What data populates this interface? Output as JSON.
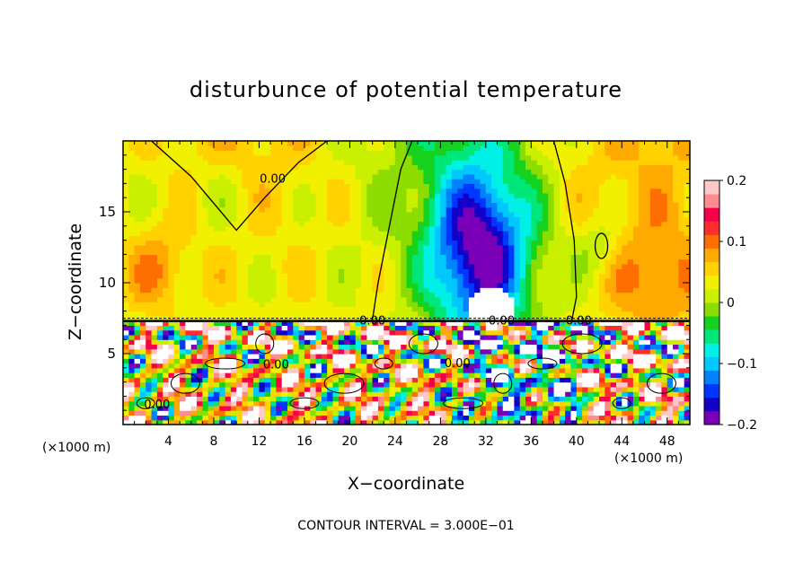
{
  "chart_data": {
    "type": "heatmap",
    "title": "disturbunce of potential temperature",
    "xlabel": "X−coordinate",
    "ylabel": "Z−coordinate",
    "x_unit_label": "(×1000 m)",
    "y_unit_label": "(×1000 m)",
    "footer": "CONTOUR INTERVAL = 3.000E−01",
    "xlim": [
      0,
      50
    ],
    "ylim": [
      0,
      20
    ],
    "x_ticks": [
      4,
      8,
      12,
      16,
      20,
      24,
      28,
      32,
      36,
      40,
      44,
      48
    ],
    "x_tick_labels": [
      "4",
      "8",
      "12",
      "16",
      "20",
      "24",
      "28",
      "32",
      "36",
      "40",
      "44",
      "48"
    ],
    "y_ticks": [
      5,
      10,
      15
    ],
    "y_tick_labels": [
      "5",
      "10",
      "15"
    ],
    "colorbar": {
      "range": [
        -0.2,
        0.2
      ],
      "ticks": [
        0.2,
        0.1,
        0,
        -0.1,
        -0.2
      ],
      "tick_labels": [
        "0.2",
        "0.1",
        "0",
        "−0.1",
        "−0.2"
      ],
      "colors": [
        "#7a00b8",
        "#1400c8",
        "#0037ff",
        "#0082ff",
        "#00c8ff",
        "#00f0e6",
        "#00e678",
        "#14d21e",
        "#8cdc00",
        "#c8f000",
        "#f0f000",
        "#ffd200",
        "#ffaa00",
        "#ff6e00",
        "#ff2d2d",
        "#f5004b",
        "#ff8c8c",
        "#ffc8c8"
      ]
    },
    "contour_labels": [
      {
        "text": "0.00",
        "x": 13.2,
        "z": 17.3
      },
      {
        "text": "0.00",
        "x": 22.0,
        "z": 7.3
      },
      {
        "text": "0.00",
        "x": 33.4,
        "z": 7.3
      },
      {
        "text": "0.00",
        "x": 40.2,
        "z": 7.3
      },
      {
        "text": "0.00",
        "x": 13.5,
        "z": 4.2
      },
      {
        "text": "0.00",
        "x": 3.0,
        "z": 1.4
      },
      {
        "text": "0.00",
        "x": 29.5,
        "z": 4.3
      }
    ],
    "field": {
      "upper_background": 0.03,
      "interface_z": 7.3,
      "features": [
        {
          "x": 31.5,
          "z": 12.0,
          "sx": 4.5,
          "sz": 6.5,
          "amp": -0.22
        },
        {
          "x": 8.0,
          "z": 16.5,
          "sx": 5.0,
          "sz": 4.0,
          "amp": -0.03
        },
        {
          "x": 3.0,
          "z": 11.0,
          "sx": 3.0,
          "sz": 3.0,
          "amp": 0.05
        },
        {
          "x": 47.0,
          "z": 10.0,
          "sx": 4.0,
          "sz": 4.0,
          "amp": 0.06
        },
        {
          "x": 42.0,
          "z": 12.5,
          "sx": 2.0,
          "sz": 2.0,
          "amp": -0.04
        }
      ]
    }
  }
}
